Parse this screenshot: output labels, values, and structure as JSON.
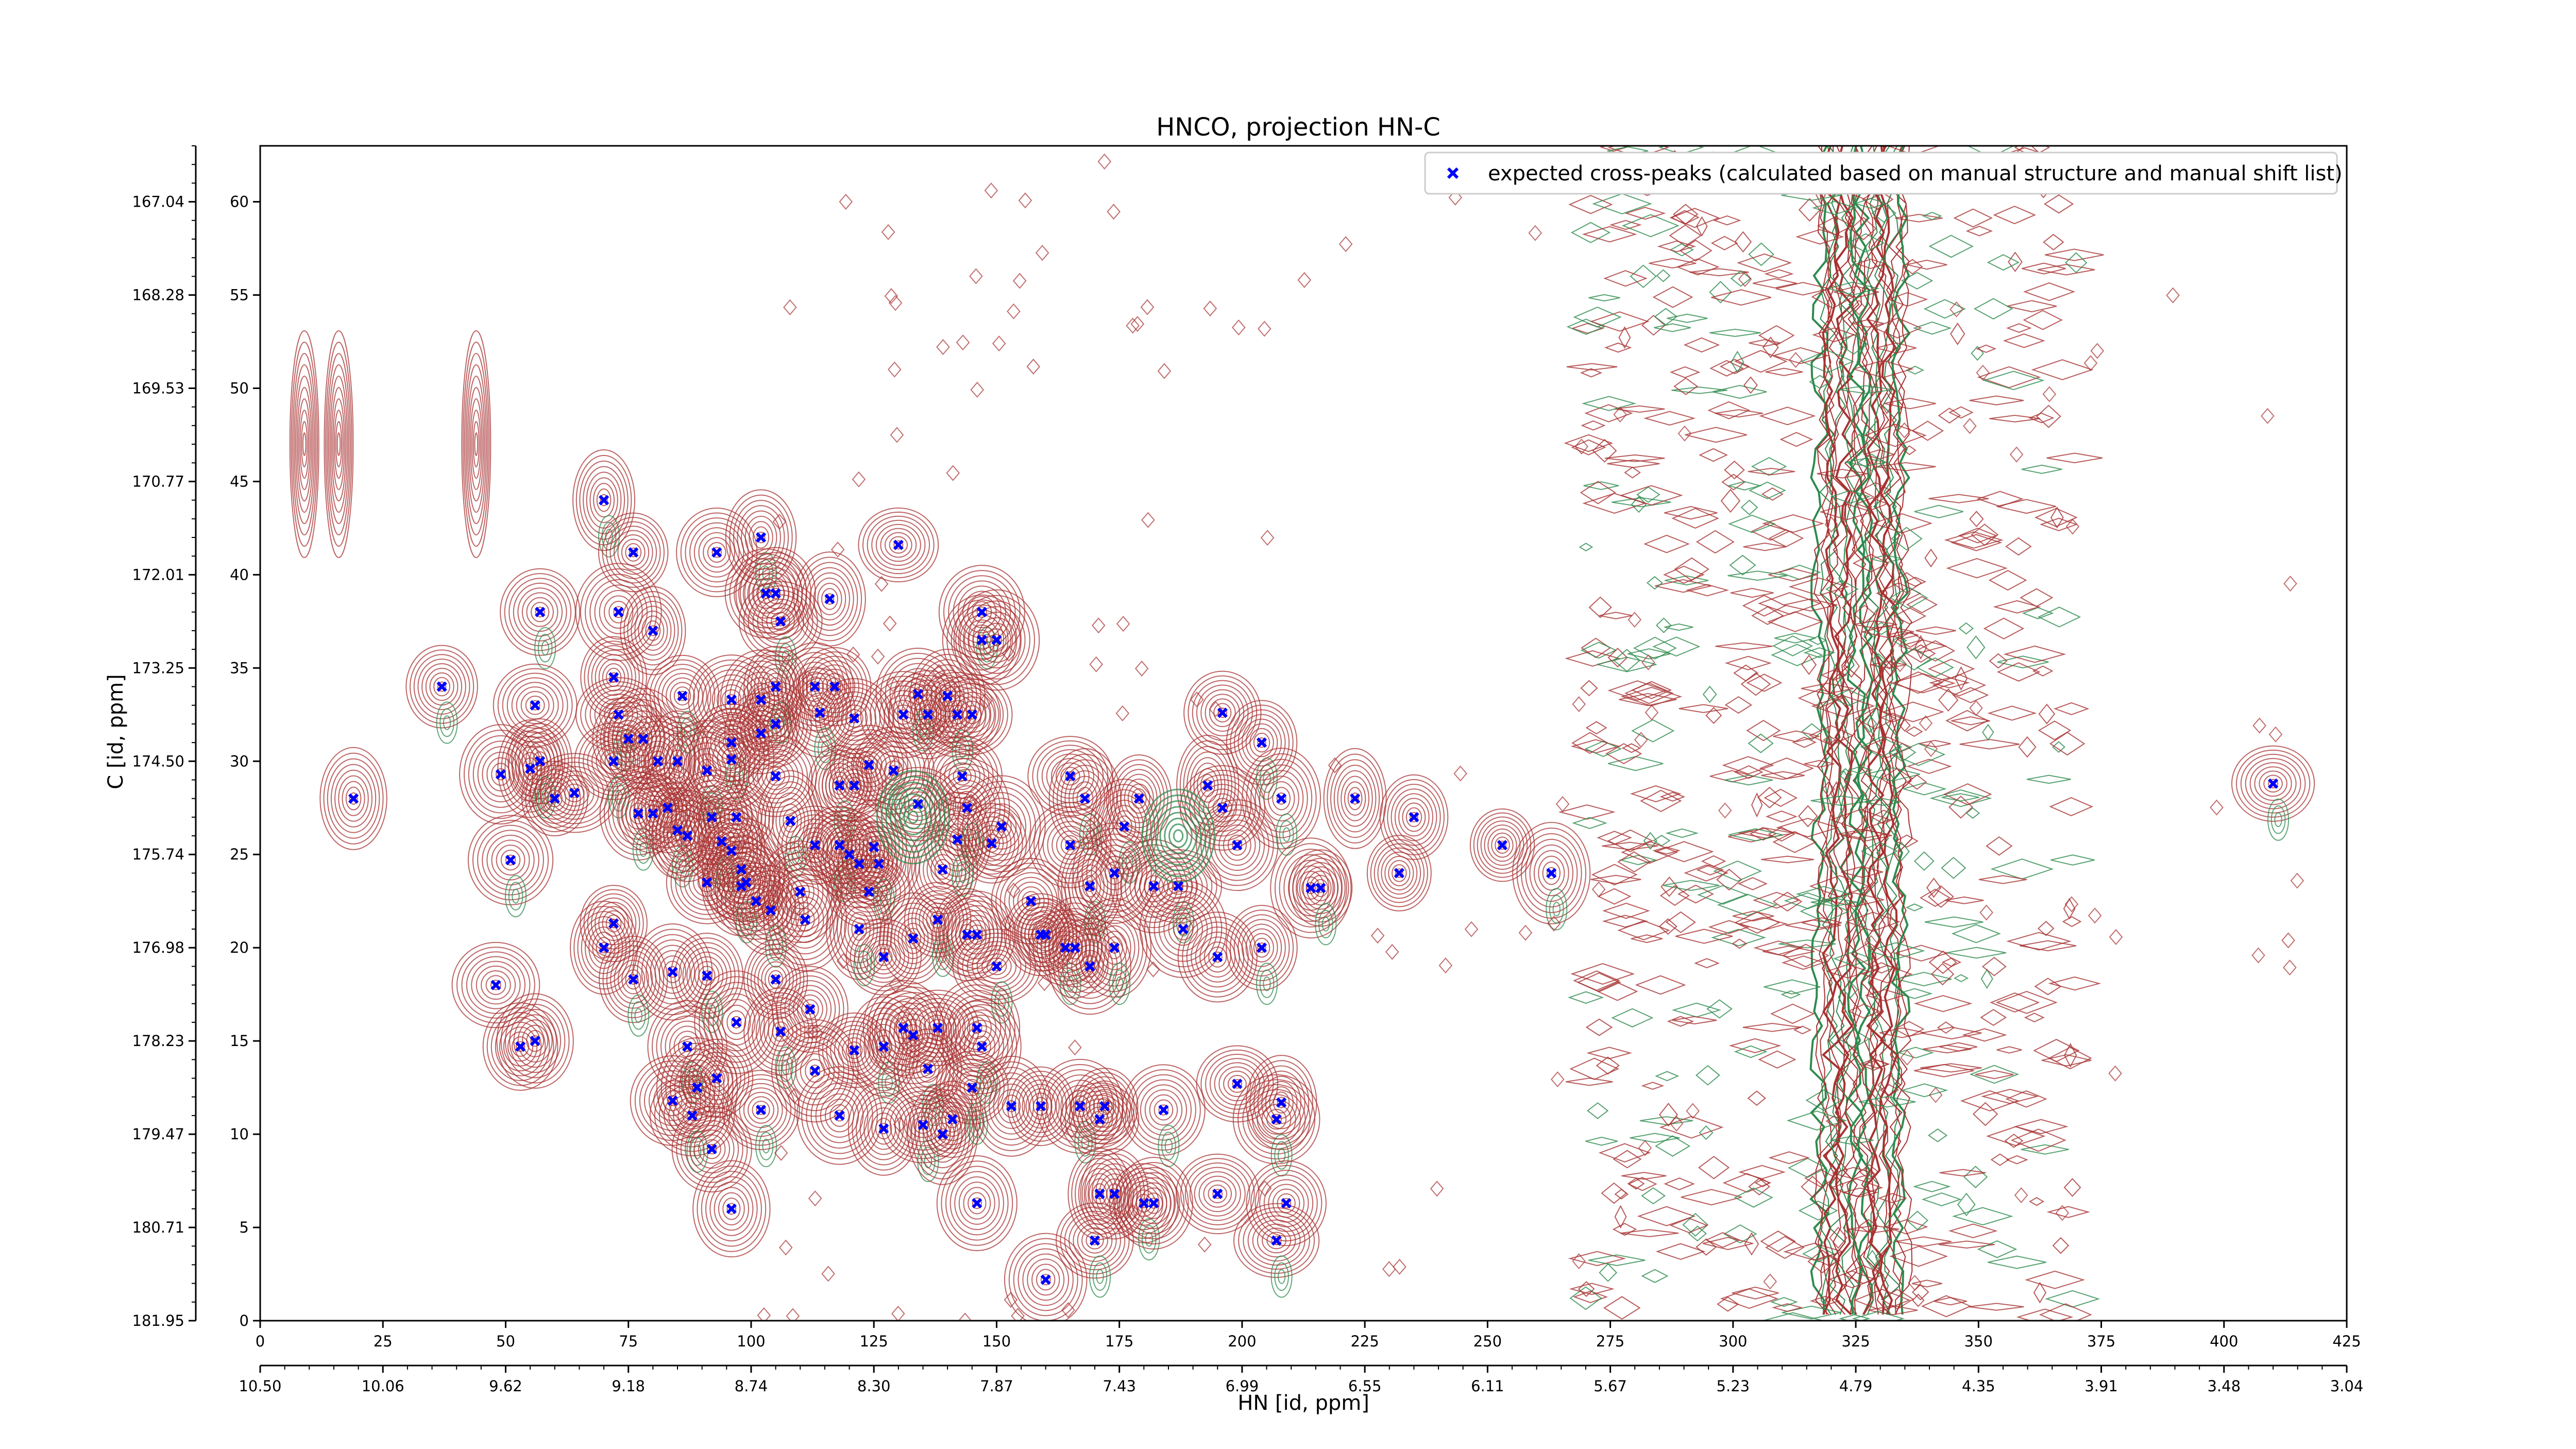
{
  "chart_data": {
    "type": "scatter",
    "title": "HNCO, projection HN-C",
    "xlabel": "HN [id, ppm]",
    "ylabel": "C [id, ppm]",
    "x_index_ticks": [
      "0",
      "25",
      "50",
      "75",
      "100",
      "125",
      "150",
      "175",
      "200",
      "225",
      "250",
      "275",
      "300",
      "325",
      "350",
      "375",
      "400",
      "425"
    ],
    "x_ppm_ticks": [
      "10.50",
      "10.06",
      "9.62",
      "9.18",
      "8.74",
      "8.30",
      "7.87",
      "7.43",
      "6.99",
      "6.55",
      "6.11",
      "5.67",
      "5.23",
      "4.79",
      "4.35",
      "3.91",
      "3.48",
      "3.04"
    ],
    "y_index_ticks": [
      "0",
      "5",
      "10",
      "15",
      "20",
      "25",
      "30",
      "35",
      "40",
      "45",
      "50",
      "55",
      "60"
    ],
    "y_ppm_ticks": [
      "181.95",
      "180.71",
      "179.47",
      "178.23",
      "176.98",
      "175.74",
      "174.50",
      "173.25",
      "172.01",
      "170.77",
      "169.53",
      "168.28",
      "167.04"
    ],
    "xlim": [
      0,
      425
    ],
    "ylim": [
      0,
      63
    ],
    "grid": false,
    "legend_position": "top-right",
    "series": [
      {
        "name": "expected cross-peaks (calculated based on manual structure and manual shift list)",
        "color": "#0000ff",
        "marker": "x",
        "points": [
          [
            70,
            44
          ],
          [
            76,
            41.2
          ],
          [
            93,
            41.2
          ],
          [
            102,
            42
          ],
          [
            103,
            39
          ],
          [
            105,
            39
          ],
          [
            106,
            37.5
          ],
          [
            116,
            38.7
          ],
          [
            130,
            41.6
          ],
          [
            57,
            38
          ],
          [
            73,
            38
          ],
          [
            80,
            37
          ],
          [
            147,
            38
          ],
          [
            147,
            36.5
          ],
          [
            150,
            36.5
          ],
          [
            37,
            34
          ],
          [
            56,
            33
          ],
          [
            72,
            34.5
          ],
          [
            86,
            33.5
          ],
          [
            96,
            33.3
          ],
          [
            102,
            33.3
          ],
          [
            105,
            34
          ],
          [
            113,
            34
          ],
          [
            117,
            34
          ],
          [
            73,
            32.5
          ],
          [
            75,
            31.2
          ],
          [
            78,
            31.2
          ],
          [
            96,
            31
          ],
          [
            102,
            31.5
          ],
          [
            105,
            32
          ],
          [
            114,
            32.6
          ],
          [
            121,
            32.3
          ],
          [
            131,
            32.5
          ],
          [
            134,
            33.6
          ],
          [
            136,
            32.5
          ],
          [
            140,
            33.5
          ],
          [
            142,
            32.5
          ],
          [
            145,
            32.5
          ],
          [
            196,
            32.6
          ],
          [
            204,
            31
          ],
          [
            49,
            29.3
          ],
          [
            55,
            29.6
          ],
          [
            57,
            30
          ],
          [
            60,
            28
          ],
          [
            64,
            28.3
          ],
          [
            72,
            30
          ],
          [
            81,
            30
          ],
          [
            85,
            30
          ],
          [
            91,
            29.5
          ],
          [
            96,
            30.1
          ],
          [
            105,
            29.2
          ],
          [
            118,
            28.7
          ],
          [
            121,
            28.7
          ],
          [
            124,
            29.8
          ],
          [
            129,
            29.5
          ],
          [
            143,
            29.2
          ],
          [
            165,
            29.2
          ],
          [
            168,
            28
          ],
          [
            179,
            28
          ],
          [
            193,
            28.7
          ],
          [
            208,
            28
          ],
          [
            223,
            28
          ],
          [
            19,
            28
          ],
          [
            77,
            27.2
          ],
          [
            80,
            27.2
          ],
          [
            83,
            27.5
          ],
          [
            85,
            26.3
          ],
          [
            92,
            27
          ],
          [
            97,
            27
          ],
          [
            108,
            26.8
          ],
          [
            125,
            25.4
          ],
          [
            134,
            27.7
          ],
          [
            144,
            27.5
          ],
          [
            151,
            26.5
          ],
          [
            165,
            25.5
          ],
          [
            176,
            26.5
          ],
          [
            196,
            27.5
          ],
          [
            235,
            27
          ],
          [
            51,
            24.7
          ],
          [
            87,
            26
          ],
          [
            91,
            23.5
          ],
          [
            94,
            25.7
          ],
          [
            96,
            25.2
          ],
          [
            98,
            24.2
          ],
          [
            98,
            23.3
          ],
          [
            99,
            23.5
          ],
          [
            101,
            22.5
          ],
          [
            104,
            22
          ],
          [
            110,
            23
          ],
          [
            113,
            25.5
          ],
          [
            118,
            25.5
          ],
          [
            120,
            25
          ],
          [
            122,
            24.5
          ],
          [
            126,
            24.5
          ],
          [
            124,
            23
          ],
          [
            139,
            24.2
          ],
          [
            142,
            25.8
          ],
          [
            149,
            25.6
          ],
          [
            157,
            22.5
          ],
          [
            169,
            23.3
          ],
          [
            174,
            24
          ],
          [
            182,
            23.3
          ],
          [
            187,
            23.3
          ],
          [
            199,
            25.5
          ],
          [
            214,
            23.2
          ],
          [
            216,
            23.2
          ],
          [
            232,
            24
          ],
          [
            253,
            25.5
          ],
          [
            263,
            24
          ],
          [
            72,
            21.3
          ],
          [
            70,
            20
          ],
          [
            76,
            18.3
          ],
          [
            48,
            18
          ],
          [
            84,
            18.7
          ],
          [
            91,
            18.5
          ],
          [
            105,
            18.3
          ],
          [
            111,
            21.5
          ],
          [
            122,
            21
          ],
          [
            127,
            19.5
          ],
          [
            133,
            20.5
          ],
          [
            138,
            21.5
          ],
          [
            144,
            20.7
          ],
          [
            146,
            20.7
          ],
          [
            150,
            19
          ],
          [
            159,
            20.7
          ],
          [
            160,
            20.7
          ],
          [
            164,
            20
          ],
          [
            166,
            20
          ],
          [
            169,
            19
          ],
          [
            174,
            20
          ],
          [
            188,
            21
          ],
          [
            195,
            19.5
          ],
          [
            204,
            20
          ],
          [
            53,
            14.7
          ],
          [
            56,
            15
          ],
          [
            87,
            14.7
          ],
          [
            89,
            12.5
          ],
          [
            97,
            16
          ],
          [
            106,
            15.5
          ],
          [
            113,
            13.4
          ],
          [
            121,
            14.5
          ],
          [
            127,
            14.7
          ],
          [
            131,
            15.7
          ],
          [
            133,
            15.3
          ],
          [
            136,
            13.5
          ],
          [
            138,
            15.7
          ],
          [
            146,
            15.7
          ],
          [
            147,
            14.7
          ],
          [
            112,
            16.7
          ],
          [
            84,
            11.8
          ],
          [
            88,
            11
          ],
          [
            92,
            9.2
          ],
          [
            93,
            13
          ],
          [
            102,
            11.3
          ],
          [
            118,
            11
          ],
          [
            127,
            10.3
          ],
          [
            135,
            10.5
          ],
          [
            139,
            10
          ],
          [
            141,
            10.8
          ],
          [
            145,
            12.5
          ],
          [
            153,
            11.5
          ],
          [
            159,
            11.5
          ],
          [
            167,
            11.5
          ],
          [
            172,
            11.5
          ],
          [
            171,
            10.8
          ],
          [
            184,
            11.3
          ],
          [
            199,
            12.7
          ],
          [
            208,
            11.7
          ],
          [
            207,
            10.8
          ],
          [
            96,
            6
          ],
          [
            146,
            6.3
          ],
          [
            170,
            4.3
          ],
          [
            171,
            6.8
          ],
          [
            174,
            6.8
          ],
          [
            180,
            6.3
          ],
          [
            182,
            6.3
          ],
          [
            195,
            6.8
          ],
          [
            207,
            4.3
          ],
          [
            209,
            6.3
          ],
          [
            160,
            2.2
          ],
          [
            410,
            28.8
          ]
        ]
      }
    ]
  }
}
